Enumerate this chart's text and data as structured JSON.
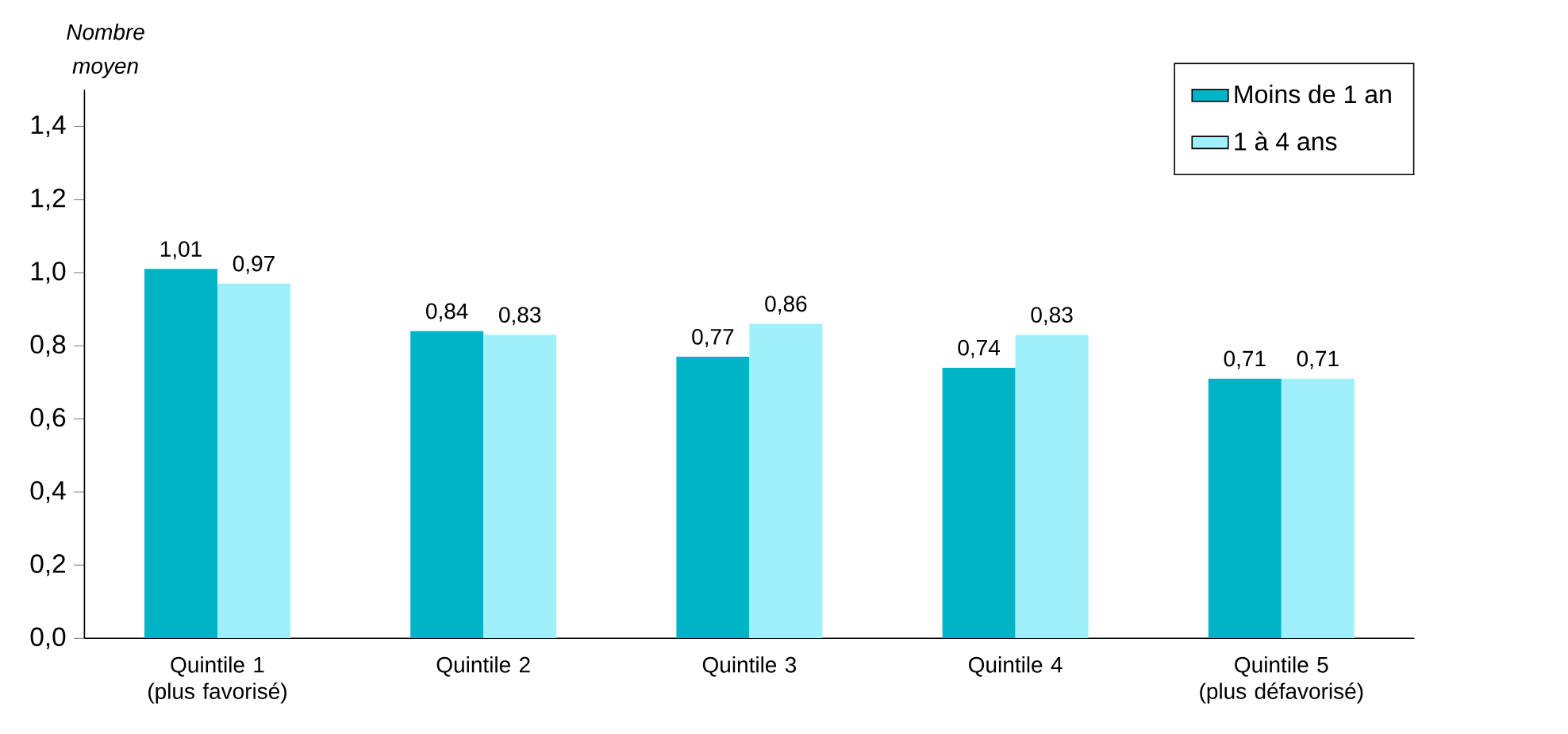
{
  "chart_data": {
    "type": "bar",
    "ylabel": "Nombre moyen",
    "categories": [
      "Quintile 1\n(plus favorisé)",
      "Quintile 2",
      "Quintile 3",
      "Quintile 4",
      "Quintile 5\n(plus défavorisé)"
    ],
    "series": [
      {
        "name": "Moins de 1 an",
        "color": "#00b4c8",
        "values": [
          1.01,
          0.84,
          0.77,
          0.74,
          0.71
        ],
        "value_labels": [
          "1,01",
          "0,84",
          "0,77",
          "0,74",
          "0,71"
        ]
      },
      {
        "name": "1 à 4 ans",
        "color": "#9ff0fa",
        "values": [
          0.97,
          0.83,
          0.86,
          0.83,
          0.71
        ],
        "value_labels": [
          "0,97",
          "0,83",
          "0,86",
          "0,83",
          "0,71"
        ]
      }
    ],
    "ylim": [
      0,
      1.5
    ],
    "yticks": [
      {
        "value": 0,
        "label": "0,0"
      },
      {
        "value": 0.2,
        "label": "0,2"
      },
      {
        "value": 0.4,
        "label": "0,4"
      },
      {
        "value": 0.6,
        "label": "0,6"
      },
      {
        "value": 0.8,
        "label": "0,8"
      },
      {
        "value": 1.0,
        "label": "1,0"
      },
      {
        "value": 1.2,
        "label": "1,2"
      },
      {
        "value": 1.4,
        "label": "1,4"
      }
    ],
    "legend": "top right"
  }
}
